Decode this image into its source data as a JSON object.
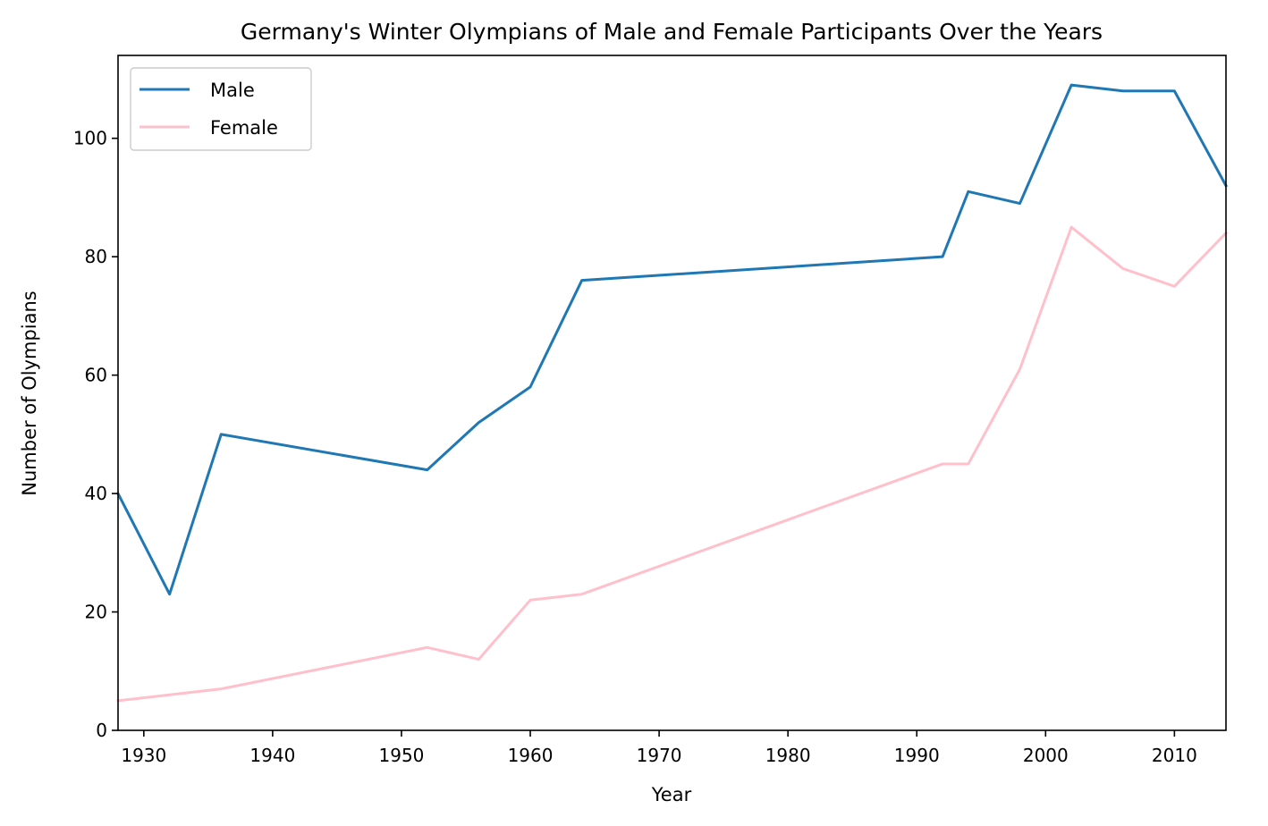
{
  "chart_data": {
    "type": "line",
    "title": "Germany's Winter Olympians of Male and Female Participants Over the Years",
    "xlabel": "Year",
    "ylabel": "Number of Olympians",
    "xlim": [
      1928,
      2014
    ],
    "ylim": [
      0,
      114
    ],
    "xticks": [
      "1930",
      "1940",
      "1950",
      "1960",
      "1970",
      "1980",
      "1990",
      "2000",
      "2010"
    ],
    "yticks": [
      "0",
      "20",
      "40",
      "60",
      "80",
      "100"
    ],
    "legend_position": "upper-left",
    "grid": false,
    "x": [
      1928,
      1932,
      1936,
      1952,
      1956,
      1960,
      1964,
      1992,
      1994,
      1998,
      2002,
      2006,
      2010,
      2014
    ],
    "series": [
      {
        "name": "Male",
        "color": "#1f77b4",
        "values": [
          40,
          23,
          50,
          44,
          52,
          58,
          76,
          80,
          91,
          89,
          109,
          108,
          108,
          92
        ]
      },
      {
        "name": "Female",
        "color": "#ffc0cb",
        "values": [
          5,
          6,
          7,
          14,
          12,
          22,
          23,
          45,
          45,
          61,
          85,
          78,
          75,
          84
        ]
      }
    ]
  }
}
